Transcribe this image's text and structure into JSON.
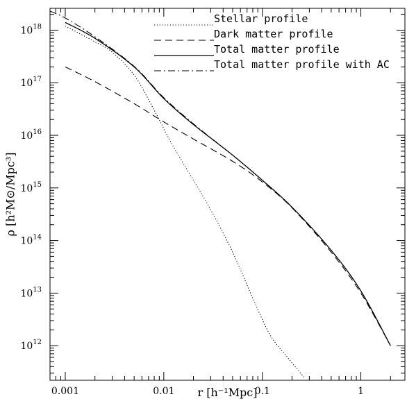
{
  "chart_data": {
    "type": "line",
    "title": "",
    "xlabel": "r [h⁻¹Mpc]",
    "ylabel": "ρ [h²M⊙/Mpc³]",
    "xscale": "log",
    "yscale": "log",
    "xlim": [
      0.0007,
      2.8
    ],
    "ylim": [
      220000000000.0,
      2.6e+18
    ],
    "grid": false,
    "legend_position": "top-right",
    "x_ticks": [
      {
        "value": 0.001,
        "label": "0.001"
      },
      {
        "value": 0.01,
        "label": "0.01"
      },
      {
        "value": 0.1,
        "label": "0.1"
      },
      {
        "value": 1,
        "label": "1"
      }
    ],
    "y_ticks": [
      {
        "value": 1000000000000.0,
        "base": "10",
        "exp": "12"
      },
      {
        "value": 10000000000000.0,
        "base": "10",
        "exp": "13"
      },
      {
        "value": 100000000000000.0,
        "base": "10",
        "exp": "14"
      },
      {
        "value": 1000000000000000.0,
        "base": "10",
        "exp": "15"
      },
      {
        "value": 1e+16,
        "base": "10",
        "exp": "16"
      },
      {
        "value": 1e+17,
        "base": "10",
        "exp": "17"
      },
      {
        "value": 1e+18,
        "base": "10",
        "exp": "18"
      }
    ],
    "series": [
      {
        "name": "Stellar profile",
        "style": "dotted",
        "color": "#000000",
        "points": [
          [
            0.001,
            1.2e+18
          ],
          [
            0.002,
            6e+17
          ],
          [
            0.003,
            3.8e+17
          ],
          [
            0.005,
            1.4e+17
          ],
          [
            0.008,
            3e+16
          ],
          [
            0.012,
            7000000000000000.0
          ],
          [
            0.02,
            1400000000000000.0
          ],
          [
            0.03,
            380000000000000.0
          ],
          [
            0.05,
            60000000000000.0
          ],
          [
            0.08,
            8000000000000.0
          ],
          [
            0.12,
            1600000000000.0
          ],
          [
            0.18,
            600000000000.0
          ],
          [
            0.27,
            240000000000.0
          ]
        ]
      },
      {
        "name": "Dark matter profile",
        "style": "dashed",
        "color": "#000000",
        "points": [
          [
            0.001,
            2e+17
          ],
          [
            0.002,
            1.05e+17
          ],
          [
            0.005,
            4e+16
          ],
          [
            0.01,
            1.8e+16
          ],
          [
            0.02,
            8500000000000000.0
          ],
          [
            0.05,
            3200000000000000.0
          ],
          [
            0.1,
            1300000000000000.0
          ],
          [
            0.2,
            420000000000000.0
          ],
          [
            0.5,
            60000000000000.0
          ],
          [
            1,
            10000000000000.0
          ],
          [
            2,
            1000000000000.0
          ]
        ]
      },
      {
        "name": "Total matter profile",
        "style": "solid",
        "color": "#000000",
        "points": [
          [
            0.001,
            1.4e+18
          ],
          [
            0.002,
            7e+17
          ],
          [
            0.005,
            2e+17
          ],
          [
            0.01,
            5e+16
          ],
          [
            0.02,
            1.6e+16
          ],
          [
            0.05,
            4200000000000000.0
          ],
          [
            0.1,
            1400000000000000.0
          ],
          [
            0.2,
            430000000000000.0
          ],
          [
            0.5,
            65000000000000.0
          ],
          [
            1,
            11000000000000.0
          ],
          [
            2,
            1000000000000.0
          ]
        ]
      },
      {
        "name": "Total matter profile with AC",
        "style": "dashdot",
        "color": "#000000",
        "points": [
          [
            0.0007,
            2.3e+18
          ],
          [
            0.001,
            1.7e+18
          ],
          [
            0.002,
            7.5e+17
          ],
          [
            0.005,
            2.05e+17
          ],
          [
            0.01,
            5.2e+16
          ],
          [
            0.02,
            1.65e+16
          ],
          [
            0.05,
            4200000000000000.0
          ],
          [
            0.1,
            1400000000000000.0
          ],
          [
            0.2,
            430000000000000.0
          ],
          [
            0.5,
            65000000000000.0
          ],
          [
            1,
            11000000000000.0
          ],
          [
            2,
            1000000000000.0
          ]
        ]
      }
    ]
  }
}
